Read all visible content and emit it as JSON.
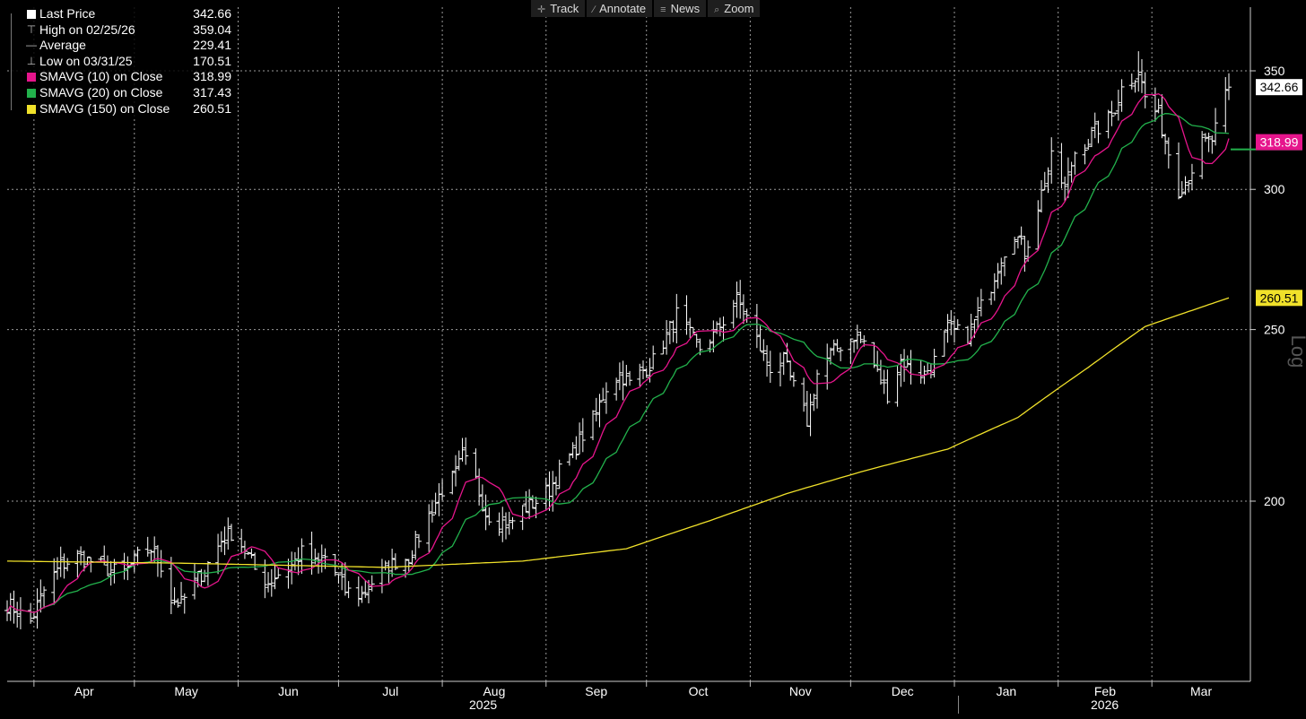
{
  "toolbar": {
    "items": [
      {
        "label": "Track",
        "icon": "crosshair-icon"
      },
      {
        "label": "Annotate",
        "icon": "pencil-icon"
      },
      {
        "label": "News",
        "icon": "news-icon"
      },
      {
        "label": "Zoom",
        "icon": "zoom-icon"
      }
    ]
  },
  "legend": {
    "rows": [
      {
        "label": "Last Price",
        "value": "342.66",
        "color": "#ffffff",
        "glyph": "square"
      },
      {
        "label": "High on 02/25/26",
        "value": "359.04",
        "color": "#bbbbbb",
        "glyph": "high-marker-icon"
      },
      {
        "label": "Average",
        "value": "229.41",
        "color": "#bbbbbb",
        "glyph": "average-marker-icon"
      },
      {
        "label": "Low on 03/31/25",
        "value": "170.51",
        "color": "#bbbbbb",
        "glyph": "low-marker-icon"
      },
      {
        "label": "SMAVG (10)  on Close",
        "value": "318.99",
        "color": "#e6158c",
        "glyph": "square"
      },
      {
        "label": "SMAVG (20)  on Close",
        "value": "317.43",
        "color": "#22b14c",
        "glyph": "square"
      },
      {
        "label": "SMAVG (150)  on Close",
        "value": "260.51",
        "color": "#f0e12a",
        "glyph": "square"
      }
    ]
  },
  "axis_scale_label": "Log",
  "colors": {
    "background": "#000000",
    "grid": "#9a9a9a",
    "price_bars": "#ffffff",
    "sma10": "#e6158c",
    "sma20": "#22b14c",
    "sma150": "#f0e12a"
  },
  "chart_data": {
    "type": "ohlc-bar",
    "y_scale": "log",
    "ylim": [
      160,
      370
    ],
    "y_ticks": [
      200,
      250,
      300,
      350
    ],
    "grid": true,
    "x_months": [
      "Apr",
      "May",
      "Jun",
      "Jul",
      "Aug",
      "Sep",
      "Oct",
      "Nov",
      "Dec",
      "Jan",
      "Feb",
      "Mar"
    ],
    "x_years": [
      "2025",
      "2026"
    ],
    "x_range": [
      "2025-03-24",
      "2026-03-24"
    ],
    "last_price": 342.66,
    "high": 359.04,
    "low": 170.51,
    "average": 229.41,
    "price_points": [
      [
        "2025-03-24",
        175
      ],
      [
        "2025-03-31",
        171
      ],
      [
        "2025-04-04",
        178
      ],
      [
        "2025-04-09",
        184
      ],
      [
        "2025-04-14",
        186
      ],
      [
        "2025-04-18",
        185
      ],
      [
        "2025-04-23",
        183
      ],
      [
        "2025-04-28",
        182
      ],
      [
        "2025-05-02",
        186
      ],
      [
        "2025-05-06",
        188
      ],
      [
        "2025-05-09",
        184
      ],
      [
        "2025-05-12",
        176
      ],
      [
        "2025-05-15",
        175
      ],
      [
        "2025-05-19",
        180
      ],
      [
        "2025-05-22",
        183
      ],
      [
        "2025-05-27",
        190
      ],
      [
        "2025-05-30",
        192
      ],
      [
        "2025-06-03",
        188
      ],
      [
        "2025-06-06",
        183
      ],
      [
        "2025-06-10",
        180
      ],
      [
        "2025-06-13",
        182
      ],
      [
        "2025-06-17",
        184
      ],
      [
        "2025-06-20",
        187
      ],
      [
        "2025-06-24",
        184
      ],
      [
        "2025-06-27",
        186
      ],
      [
        "2025-07-01",
        181
      ],
      [
        "2025-07-03",
        178
      ],
      [
        "2025-07-08",
        177
      ],
      [
        "2025-07-11",
        180
      ],
      [
        "2025-07-15",
        183
      ],
      [
        "2025-07-18",
        185
      ],
      [
        "2025-07-22",
        186
      ],
      [
        "2025-07-25",
        191
      ],
      [
        "2025-07-29",
        198
      ],
      [
        "2025-08-01",
        203
      ],
      [
        "2025-08-05",
        207
      ],
      [
        "2025-08-07",
        212
      ],
      [
        "2025-08-11",
        205
      ],
      [
        "2025-08-14",
        197
      ],
      [
        "2025-08-18",
        195
      ],
      [
        "2025-08-21",
        194
      ],
      [
        "2025-08-25",
        198
      ],
      [
        "2025-08-29",
        200
      ],
      [
        "2025-09-02",
        203
      ],
      [
        "2025-09-05",
        208
      ],
      [
        "2025-09-09",
        213
      ],
      [
        "2025-09-12",
        218
      ],
      [
        "2025-09-16",
        224
      ],
      [
        "2025-09-19",
        232
      ],
      [
        "2025-09-23",
        236
      ],
      [
        "2025-09-26",
        233
      ],
      [
        "2025-09-30",
        237
      ],
      [
        "2025-10-03",
        240
      ],
      [
        "2025-10-07",
        248
      ],
      [
        "2025-10-10",
        255
      ],
      [
        "2025-10-14",
        248
      ],
      [
        "2025-10-17",
        244
      ],
      [
        "2025-10-21",
        248
      ],
      [
        "2025-10-24",
        253
      ],
      [
        "2025-10-28",
        260
      ],
      [
        "2025-10-31",
        254
      ],
      [
        "2025-11-04",
        244
      ],
      [
        "2025-11-07",
        238
      ],
      [
        "2025-11-11",
        240
      ],
      [
        "2025-11-14",
        232
      ],
      [
        "2025-11-18",
        222
      ],
      [
        "2025-11-21",
        236
      ],
      [
        "2025-11-25",
        242
      ],
      [
        "2025-11-28",
        245
      ],
      [
        "2025-12-02",
        248
      ],
      [
        "2025-12-05",
        246
      ],
      [
        "2025-12-09",
        236
      ],
      [
        "2025-12-12",
        230
      ],
      [
        "2025-12-16",
        240
      ],
      [
        "2025-12-19",
        237
      ],
      [
        "2025-12-23",
        236
      ],
      [
        "2025-12-26",
        240
      ],
      [
        "2025-12-30",
        250
      ],
      [
        "2026-01-05",
        248
      ],
      [
        "2026-01-08",
        255
      ],
      [
        "2026-01-12",
        265
      ],
      [
        "2026-01-15",
        275
      ],
      [
        "2026-01-19",
        284
      ],
      [
        "2026-01-22",
        276
      ],
      [
        "2026-01-26",
        294
      ],
      [
        "2026-01-30",
        312
      ],
      [
        "2026-02-03",
        300
      ],
      [
        "2026-02-06",
        315
      ],
      [
        "2026-02-10",
        320
      ],
      [
        "2026-02-13",
        325
      ],
      [
        "2026-02-17",
        330
      ],
      [
        "2026-02-20",
        342
      ],
      [
        "2026-02-25",
        350
      ],
      [
        "2026-02-27",
        338
      ],
      [
        "2026-03-03",
        330
      ],
      [
        "2026-03-06",
        315
      ],
      [
        "2026-03-09",
        300
      ],
      [
        "2026-03-12",
        305
      ],
      [
        "2026-03-16",
        318
      ],
      [
        "2026-03-19",
        320
      ],
      [
        "2026-03-24",
        342.66
      ]
    ],
    "sma150_points": [
      [
        "2025-03-24",
        185
      ],
      [
        "2025-05-15",
        184.5
      ],
      [
        "2025-07-15",
        183.5
      ],
      [
        "2025-08-25",
        185
      ],
      [
        "2025-09-25",
        188
      ],
      [
        "2025-10-20",
        195
      ],
      [
        "2025-11-12",
        202
      ],
      [
        "2025-12-05",
        208
      ],
      [
        "2025-12-30",
        214
      ],
      [
        "2026-01-20",
        223
      ],
      [
        "2026-02-10",
        238
      ],
      [
        "2026-02-27",
        251
      ],
      [
        "2026-03-24",
        260.51
      ]
    ],
    "series": [
      {
        "name": "Last Price",
        "value": 342.66
      },
      {
        "name": "SMAVG (10)  on Close",
        "value": 318.99
      },
      {
        "name": "SMAVG (20)  on Close",
        "value": 317.43
      },
      {
        "name": "SMAVG (150)  on Close",
        "value": 260.51
      }
    ]
  }
}
